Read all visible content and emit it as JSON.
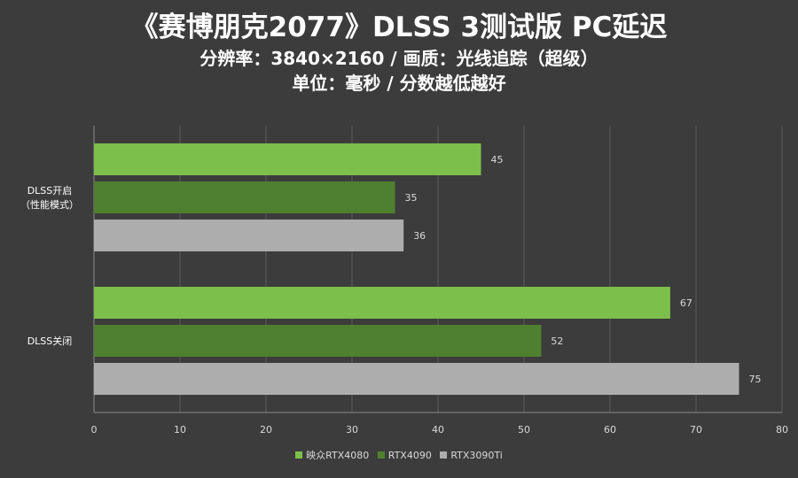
{
  "title": {
    "line1": "《赛博朋克2077》DLSS 3测试版 PC延迟",
    "line2": "分辨率：3840×2160 / 画质：光线追踪（超级）",
    "line3": "单位：毫秒 / 分数越低越好"
  },
  "chart_data": {
    "type": "bar",
    "orientation": "horizontal",
    "categories": [
      "DLSS开启\n（性能模式）",
      "DLSS关闭"
    ],
    "series": [
      {
        "name": "映众RTX4080",
        "color": "#7cbf4b",
        "values": [
          45,
          67
        ]
      },
      {
        "name": "RTX4090",
        "color": "#4f8030",
        "values": [
          35,
          52
        ]
      },
      {
        "name": "RTX3090Ti",
        "color": "#adadad",
        "values": [
          36,
          75
        ]
      }
    ],
    "xlim": [
      0,
      80
    ],
    "xticks": [
      0,
      10,
      20,
      30,
      40,
      50,
      60,
      70,
      80
    ],
    "grid": true,
    "legend_position": "bottom"
  }
}
